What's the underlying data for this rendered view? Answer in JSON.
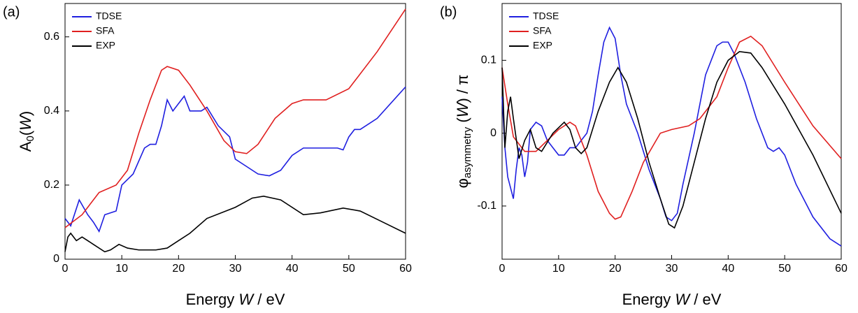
{
  "chart_data": [
    {
      "type": "line",
      "panel_label": "(a)",
      "xlabel": {
        "base": "Energy ",
        "italic": "W",
        "rest": " / eV"
      },
      "ylabel": {
        "base": "A",
        "sub": "0",
        "open": "(",
        "italic": "W",
        "rest": ")"
      },
      "xlim": [
        0,
        60
      ],
      "ylim": [
        0,
        0.69
      ],
      "xticks": [
        0,
        10,
        20,
        30,
        40,
        50,
        60
      ],
      "yticks": [
        0,
        0.2,
        0.4,
        0.6
      ],
      "legend": "upper left",
      "series": [
        {
          "name": "TDSE",
          "color": "#1f1fe0",
          "x": [
            0,
            1,
            2.5,
            4,
            5,
            6,
            7,
            9,
            10,
            12,
            14,
            15,
            16,
            17,
            18,
            19,
            20,
            21,
            22,
            24,
            25,
            27,
            29,
            30,
            32,
            34,
            36,
            38,
            40,
            42,
            45,
            48,
            49,
            50,
            51,
            52,
            55,
            60
          ],
          "values": [
            0.11,
            0.09,
            0.16,
            0.12,
            0.1,
            0.075,
            0.12,
            0.13,
            0.2,
            0.23,
            0.3,
            0.31,
            0.31,
            0.36,
            0.43,
            0.4,
            0.42,
            0.44,
            0.4,
            0.4,
            0.41,
            0.36,
            0.33,
            0.27,
            0.25,
            0.23,
            0.225,
            0.24,
            0.28,
            0.3,
            0.3,
            0.3,
            0.295,
            0.33,
            0.35,
            0.35,
            0.38,
            0.465
          ]
        },
        {
          "name": "SFA",
          "color": "#e01f1f",
          "x": [
            0,
            3,
            6,
            9,
            11,
            13,
            15,
            17,
            18,
            20,
            22,
            25,
            28,
            30,
            32,
            34,
            37,
            40,
            42,
            46,
            50,
            55,
            60
          ],
          "values": [
            0.085,
            0.12,
            0.18,
            0.2,
            0.24,
            0.34,
            0.43,
            0.51,
            0.52,
            0.51,
            0.47,
            0.4,
            0.32,
            0.29,
            0.285,
            0.31,
            0.38,
            0.42,
            0.43,
            0.43,
            0.46,
            0.56,
            0.675
          ]
        },
        {
          "name": "EXP",
          "color": "#000000",
          "x": [
            0,
            0.5,
            1,
            2,
            3,
            5,
            7,
            8,
            9.5,
            11,
            13,
            16,
            18,
            20,
            22,
            25,
            30,
            33,
            35,
            38,
            42,
            45,
            49,
            52,
            56,
            60
          ],
          "values": [
            0.02,
            0.06,
            0.07,
            0.05,
            0.06,
            0.04,
            0.02,
            0.025,
            0.04,
            0.03,
            0.025,
            0.025,
            0.03,
            0.05,
            0.07,
            0.11,
            0.14,
            0.165,
            0.17,
            0.16,
            0.12,
            0.125,
            0.138,
            0.13,
            0.1,
            0.07
          ]
        }
      ]
    },
    {
      "type": "line",
      "panel_label": "(b)",
      "xlabel": {
        "base": "Energy ",
        "italic": "W",
        "rest": " / eV"
      },
      "ylabel": {
        "base": "φ",
        "sub": "asymmetry",
        "open": " (",
        "italic": "W",
        "rest": ") / π"
      },
      "xlim": [
        0,
        60
      ],
      "ylim": [
        -0.173,
        0.178
      ],
      "xticks": [
        0,
        10,
        20,
        30,
        40,
        50,
        60
      ],
      "yticks": [
        -0.1,
        0,
        0.1
      ],
      "legend": "upper left",
      "series": [
        {
          "name": "TDSE",
          "color": "#1f1fe0",
          "x": [
            0,
            0.5,
            1,
            2,
            2.5,
            3,
            3.5,
            4,
            4.5,
            5,
            6,
            7,
            8,
            9,
            10,
            11,
            12,
            13,
            14,
            15,
            16,
            17,
            18,
            19,
            20,
            21,
            22,
            24,
            26,
            28,
            29,
            30,
            31,
            32,
            34,
            36,
            38,
            39,
            40,
            41,
            43,
            45,
            47,
            48,
            49,
            50,
            52,
            55,
            58,
            60
          ],
          "values": [
            0.05,
            -0.02,
            -0.06,
            -0.09,
            -0.05,
            -0.02,
            -0.03,
            -0.06,
            -0.04,
            0.005,
            0.015,
            0.01,
            -0.01,
            -0.02,
            -0.03,
            -0.03,
            -0.02,
            -0.02,
            -0.01,
            0.0,
            0.03,
            0.08,
            0.125,
            0.145,
            0.13,
            0.08,
            0.04,
            0.0,
            -0.05,
            -0.09,
            -0.115,
            -0.12,
            -0.11,
            -0.07,
            0.0,
            0.08,
            0.12,
            0.125,
            0.125,
            0.11,
            0.07,
            0.02,
            -0.02,
            -0.025,
            -0.02,
            -0.03,
            -0.07,
            -0.115,
            -0.145,
            -0.155
          ]
        },
        {
          "name": "SFA",
          "color": "#e01f1f",
          "x": [
            0,
            1,
            2,
            4,
            6,
            8,
            10,
            12,
            13,
            15,
            17,
            19,
            20,
            21,
            23,
            25,
            28,
            30,
            33,
            35,
            38,
            40,
            42,
            44,
            46,
            50,
            55,
            60
          ],
          "values": [
            0.09,
            0.04,
            -0.005,
            -0.025,
            -0.025,
            -0.01,
            0.005,
            0.015,
            0.01,
            -0.03,
            -0.08,
            -0.11,
            -0.118,
            -0.115,
            -0.08,
            -0.04,
            0.0,
            0.005,
            0.01,
            0.02,
            0.05,
            0.09,
            0.125,
            0.133,
            0.12,
            0.07,
            0.01,
            -0.035
          ]
        },
        {
          "name": "EXP",
          "color": "#000000",
          "x": [
            0,
            0.5,
            1,
            1.5,
            2,
            3,
            4,
            5,
            6,
            7,
            9,
            11,
            12,
            13,
            14,
            15,
            17,
            19,
            20.5,
            22,
            24,
            26,
            28,
            29.5,
            30.5,
            32,
            34,
            36,
            38,
            40,
            42,
            44,
            46,
            50,
            55,
            60
          ],
          "values": [
            0.09,
            -0.02,
            0.03,
            0.05,
            0.02,
            -0.035,
            -0.01,
            0.005,
            -0.02,
            -0.025,
            0.0,
            0.015,
            0.005,
            -0.02,
            -0.028,
            -0.02,
            0.03,
            0.07,
            0.09,
            0.07,
            0.02,
            -0.04,
            -0.09,
            -0.125,
            -0.13,
            -0.1,
            -0.04,
            0.02,
            0.07,
            0.1,
            0.112,
            0.11,
            0.09,
            0.04,
            -0.03,
            -0.11
          ]
        }
      ]
    }
  ]
}
